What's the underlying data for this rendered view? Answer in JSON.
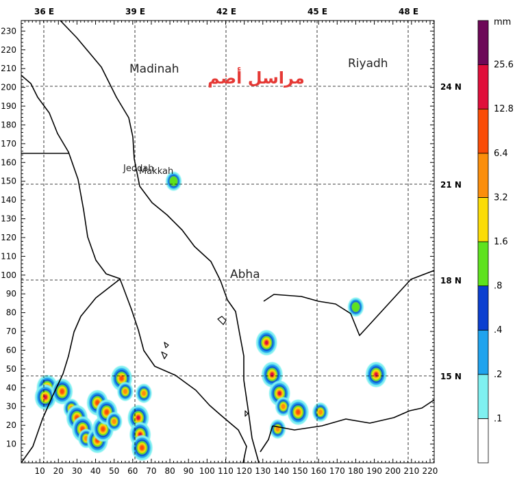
{
  "axes": {
    "top_ticks": [
      "36 E",
      "39 E",
      "42 E",
      "45 E",
      "48 E"
    ],
    "right_ticks": [
      "24 N",
      "21 N",
      "18 N",
      "15 N"
    ],
    "bottom_ticks": [
      "10",
      "20",
      "30",
      "40",
      "50",
      "60",
      "70",
      "80",
      "90",
      "100",
      "110",
      "120",
      "130",
      "140",
      "150",
      "160",
      "170",
      "180",
      "190",
      "200",
      "210",
      "220"
    ],
    "left_ticks": [
      "10",
      "20",
      "30",
      "40",
      "50",
      "60",
      "70",
      "80",
      "90",
      "100",
      "110",
      "120",
      "130",
      "140",
      "150",
      "160",
      "170",
      "180",
      "190",
      "200",
      "210",
      "220",
      "230"
    ]
  },
  "labels": {
    "madinah": "Madinah",
    "riyadh": "Riyadh",
    "jeddah": "Jeddah",
    "makkah": "Makkah",
    "abha": "Abha",
    "watermark": "مراسل أضم"
  },
  "colorbar": {
    "unit": "mm",
    "levels": [
      ".1",
      ".2",
      ".4",
      ".8",
      "1.6",
      "3.2",
      "6.4",
      "12.8",
      "25.6"
    ],
    "colors": [
      "#ffffff",
      "#7ff0f0",
      "#1fa3ee",
      "#0b3fd0",
      "#5ee21e",
      "#fbdc07",
      "#fb8e0b",
      "#fa4c07",
      "#e00e3a",
      "#6d0858"
    ]
  },
  "precip_cells": [
    {
      "x": 14,
      "y": 40,
      "level": 8
    },
    {
      "x": 13,
      "y": 35,
      "level": 8
    },
    {
      "x": 22,
      "y": 38,
      "level": 7
    },
    {
      "x": 27,
      "y": 29,
      "level": 6
    },
    {
      "x": 30,
      "y": 24,
      "level": 7
    },
    {
      "x": 33,
      "y": 18,
      "level": 7
    },
    {
      "x": 35,
      "y": 13,
      "level": 6
    },
    {
      "x": 41,
      "y": 12,
      "level": 7
    },
    {
      "x": 44,
      "y": 18,
      "level": 7
    },
    {
      "x": 41,
      "y": 32,
      "level": 7
    },
    {
      "x": 46,
      "y": 27,
      "level": 7
    },
    {
      "x": 50,
      "y": 22,
      "level": 6
    },
    {
      "x": 54,
      "y": 45,
      "level": 7
    },
    {
      "x": 56,
      "y": 38,
      "level": 6
    },
    {
      "x": 63,
      "y": 24,
      "level": 8
    },
    {
      "x": 64,
      "y": 15,
      "level": 8
    },
    {
      "x": 65,
      "y": 8,
      "level": 7
    },
    {
      "x": 66,
      "y": 37,
      "level": 6
    },
    {
      "x": 82,
      "y": 150,
      "level": 4
    },
    {
      "x": 132,
      "y": 64,
      "level": 8
    },
    {
      "x": 135,
      "y": 47,
      "level": 8
    },
    {
      "x": 139,
      "y": 37,
      "level": 8
    },
    {
      "x": 141,
      "y": 30,
      "level": 6
    },
    {
      "x": 149,
      "y": 27,
      "level": 7
    },
    {
      "x": 138,
      "y": 18,
      "level": 6
    },
    {
      "x": 161,
      "y": 27,
      "level": 6
    },
    {
      "x": 191,
      "y": 47,
      "level": 8
    },
    {
      "x": 180,
      "y": 83,
      "level": 4
    }
  ]
}
